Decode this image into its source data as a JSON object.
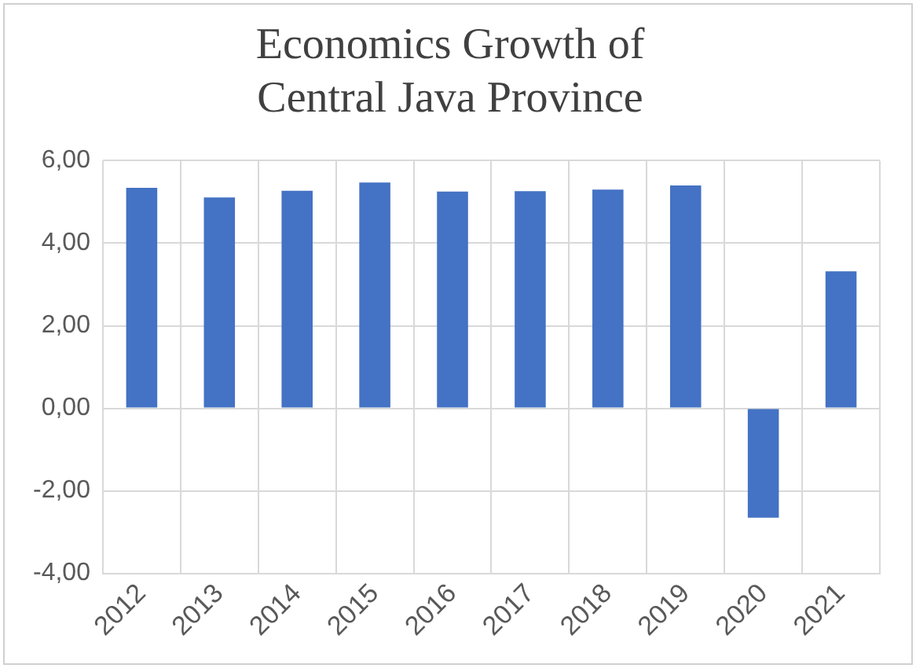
{
  "chart_data": {
    "type": "bar",
    "title": "Economics Growth of\nCentral Java Province",
    "categories": [
      "2012",
      "2013",
      "2014",
      "2015",
      "2016",
      "2017",
      "2018",
      "2019",
      "2020",
      "2021"
    ],
    "values": [
      5.34,
      5.11,
      5.27,
      5.47,
      5.25,
      5.26,
      5.3,
      5.4,
      -2.65,
      3.32
    ],
    "color": "#4472c4",
    "ylim": [
      -4,
      6
    ],
    "yticks": [
      {
        "value": -4,
        "label": "-4,00"
      },
      {
        "value": -2,
        "label": "-2,00"
      },
      {
        "value": 0,
        "label": "0,00"
      },
      {
        "value": 2,
        "label": "2,00"
      },
      {
        "value": 4,
        "label": "4,00"
      },
      {
        "value": 6,
        "label": "6,00"
      }
    ],
    "grid": true,
    "legend": false
  }
}
